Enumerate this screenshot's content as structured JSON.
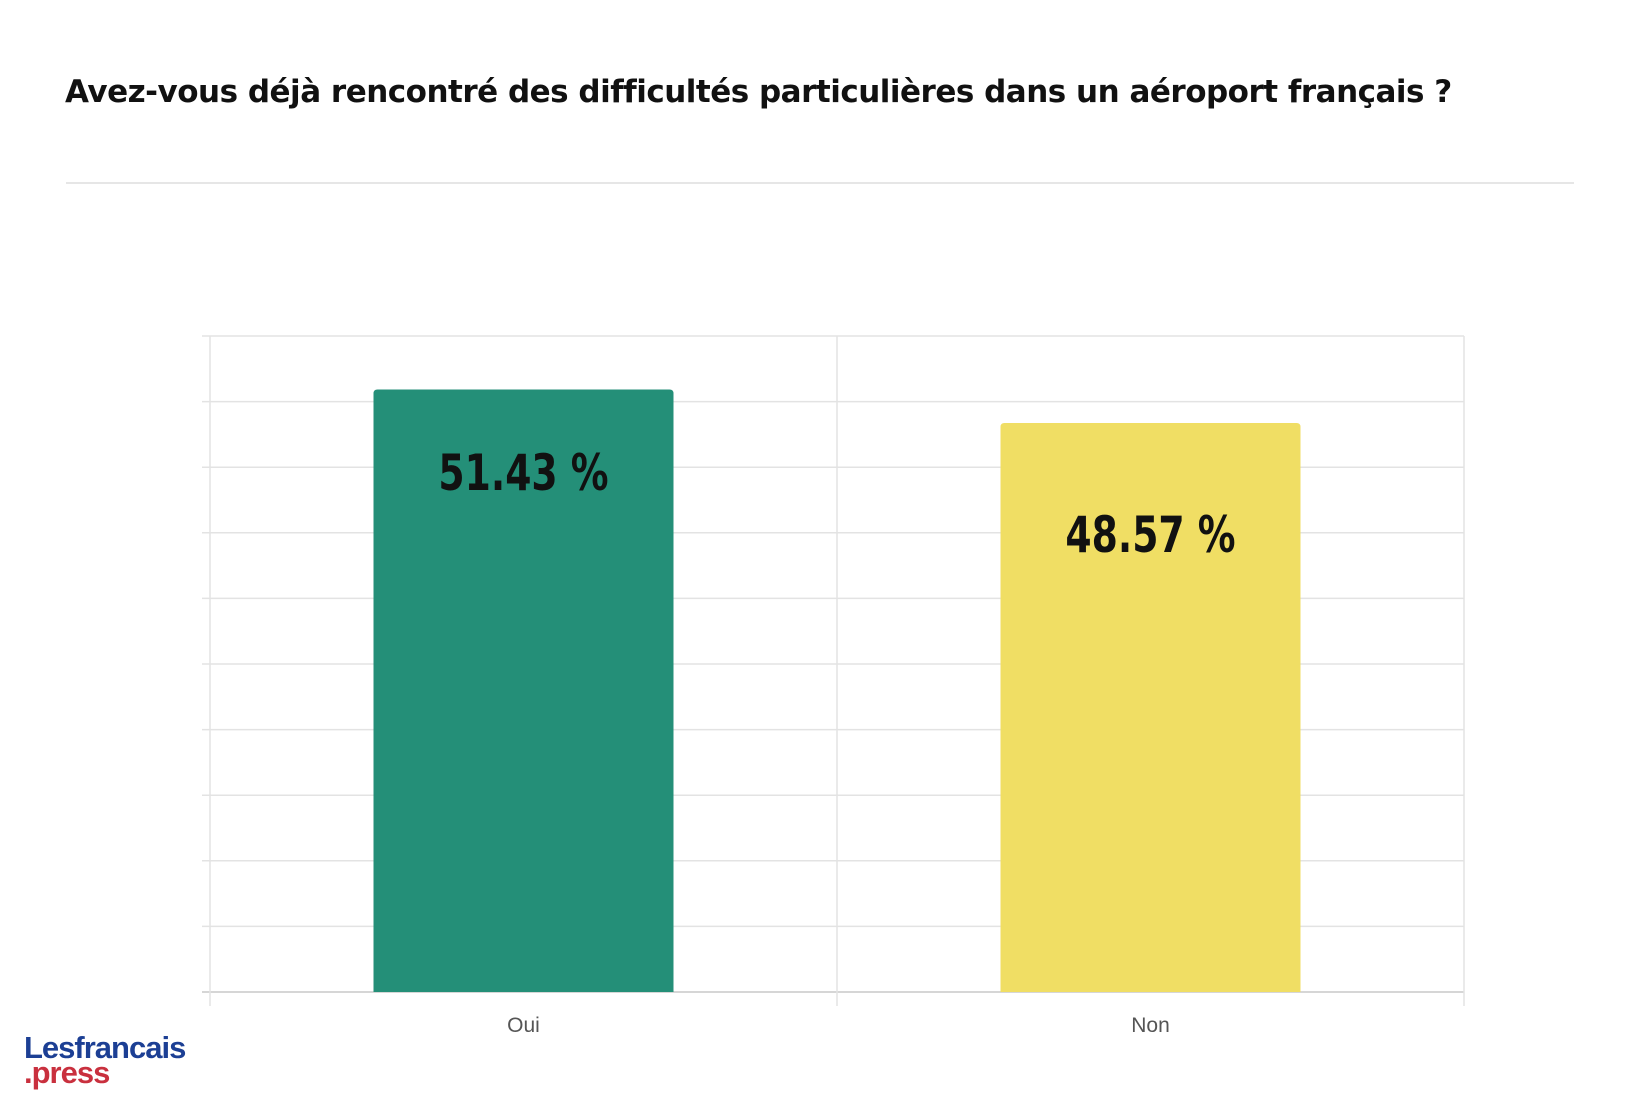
{
  "page": {
    "title": "Avez-vous déjà rencontré des difficultés particulières dans un aéroport français ?"
  },
  "logo": {
    "line1": "Lesfrancais",
    "line2": ".press",
    "color_primary": "#1c3f94",
    "color_secondary": "#c9303e"
  },
  "chart_data": {
    "type": "bar",
    "categories": [
      "Oui",
      "Non"
    ],
    "values": [
      51.43,
      48.57
    ],
    "value_labels": [
      "51.43 %",
      "48.57 %"
    ],
    "colors": [
      "#248f78",
      "#f0de64"
    ],
    "title": "",
    "xlabel": "",
    "ylabel": "",
    "ylim": [
      0,
      56
    ],
    "grid": true,
    "legend": "none"
  }
}
